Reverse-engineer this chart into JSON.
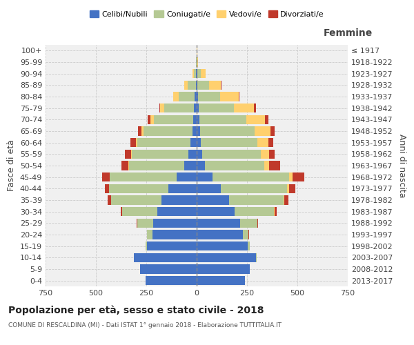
{
  "age_groups": [
    "0-4",
    "5-9",
    "10-14",
    "15-19",
    "20-24",
    "25-29",
    "30-34",
    "35-39",
    "40-44",
    "45-49",
    "50-54",
    "55-59",
    "60-64",
    "65-69",
    "70-74",
    "75-79",
    "80-84",
    "85-89",
    "90-94",
    "95-99",
    "100+"
  ],
  "birth_years": [
    "2013-2017",
    "2008-2012",
    "2003-2007",
    "1998-2002",
    "1993-1997",
    "1988-1992",
    "1983-1987",
    "1978-1982",
    "1973-1977",
    "1968-1972",
    "1963-1967",
    "1958-1962",
    "1953-1957",
    "1948-1952",
    "1943-1947",
    "1938-1942",
    "1933-1937",
    "1928-1932",
    "1923-1927",
    "1918-1922",
    "≤ 1917"
  ],
  "males": {
    "celibe": [
      255,
      280,
      310,
      245,
      220,
      215,
      195,
      175,
      140,
      100,
      60,
      42,
      30,
      22,
      18,
      15,
      10,
      5,
      2,
      0,
      0
    ],
    "coniugato": [
      0,
      0,
      3,
      8,
      25,
      80,
      175,
      250,
      295,
      330,
      275,
      280,
      265,
      240,
      195,
      145,
      80,
      40,
      12,
      2,
      1
    ],
    "vedovo": [
      0,
      0,
      0,
      0,
      0,
      0,
      0,
      1,
      1,
      2,
      3,
      5,
      8,
      12,
      18,
      20,
      25,
      15,
      5,
      1,
      0
    ],
    "divorziato": [
      0,
      0,
      0,
      0,
      1,
      3,
      8,
      15,
      20,
      38,
      35,
      30,
      25,
      18,
      12,
      5,
      2,
      0,
      0,
      0,
      0
    ]
  },
  "females": {
    "nubile": [
      240,
      265,
      295,
      255,
      230,
      215,
      190,
      160,
      120,
      80,
      40,
      28,
      22,
      18,
      15,
      10,
      8,
      5,
      2,
      0,
      0
    ],
    "coniugata": [
      0,
      0,
      3,
      10,
      28,
      85,
      195,
      270,
      330,
      380,
      295,
      290,
      280,
      270,
      230,
      175,
      110,
      55,
      18,
      3,
      1
    ],
    "vedova": [
      0,
      0,
      0,
      0,
      0,
      1,
      2,
      5,
      10,
      15,
      25,
      40,
      55,
      80,
      95,
      100,
      90,
      60,
      25,
      5,
      1
    ],
    "divorziata": [
      0,
      0,
      0,
      0,
      1,
      3,
      10,
      20,
      30,
      60,
      55,
      28,
      22,
      18,
      15,
      8,
      5,
      2,
      1,
      0,
      0
    ]
  },
  "colors": {
    "celibe_nubile": "#4472C4",
    "coniugato_a": "#B5C994",
    "vedovo_a": "#FFD06E",
    "divorziato_a": "#C0392B"
  },
  "title": "Popolazione per età, sesso e stato civile - 2018",
  "subtitle": "COMUNE DI RESCALDINA (MI) - Dati ISTAT 1° gennaio 2018 - Elaborazione TUTTITALIA.IT",
  "xlabel_right": "Femmine",
  "ylabel_left": "Fasce di età",
  "ylabel_right": "Anni di nascita",
  "xlim": 750,
  "bg_color": "#f0f0f0",
  "grid_color": "#cccccc"
}
